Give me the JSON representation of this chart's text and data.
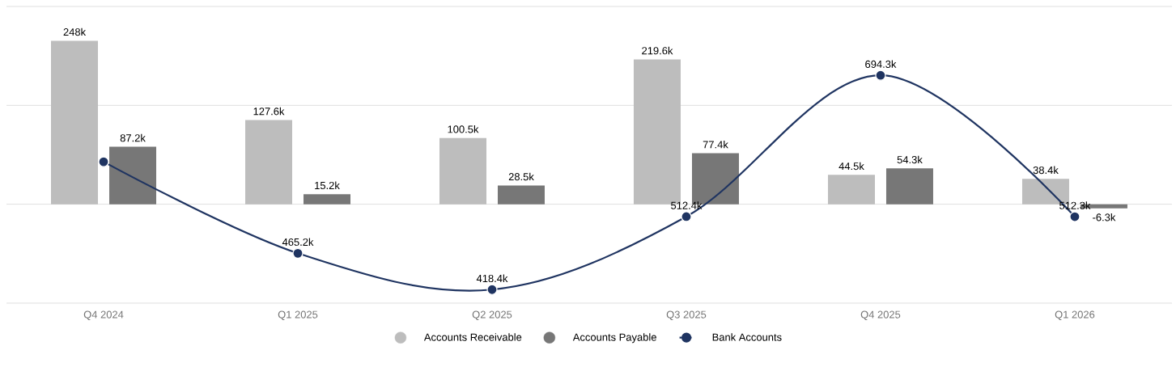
{
  "chart_data": {
    "type": "bar",
    "categories": [
      "Q4 2024",
      "Q1 2025",
      "Q2 2025",
      "Q3 2025",
      "Q4 2025",
      "Q1 2026"
    ],
    "series": [
      {
        "name": "Accounts Receivable",
        "color": "#bdbdbd",
        "values": [
          248,
          127.6,
          100.5,
          219.6,
          44.5,
          38.4
        ],
        "value_labels": [
          "248k",
          "127.6k",
          "100.5k",
          "219.6k",
          "44.5k",
          "38.4k"
        ]
      },
      {
        "name": "Accounts Payable",
        "color": "#777777",
        "values": [
          87.2,
          15.2,
          28.5,
          77.4,
          54.3,
          -6.3
        ],
        "value_labels": [
          "87.2k",
          "15.2k",
          "28.5k",
          "77.4k",
          "54.3k",
          "-6.3k"
        ]
      },
      {
        "name": "Bank Accounts",
        "type": "line",
        "axis": "y2",
        "color": "#1f3461",
        "marker": "circle",
        "line_style": "solid",
        "values": [
          583,
          465.2,
          418.4,
          512.4,
          694.3,
          512.3
        ],
        "value_labels": [
          null,
          "465.2k",
          "418.4k",
          "512.4k",
          "694.3k",
          "512.3k"
        ]
      }
    ],
    "ylim": [
      -150,
      300
    ],
    "yticks": [
      {
        "value": -150,
        "label": null
      },
      {
        "value": 0,
        "label": null
      },
      {
        "value": 150,
        "label": null
      },
      {
        "value": 300,
        "label": null
      }
    ],
    "y2lim": [
      401,
      783
    ],
    "grid": "y",
    "tick_labels": "x",
    "legend": "bottom"
  }
}
